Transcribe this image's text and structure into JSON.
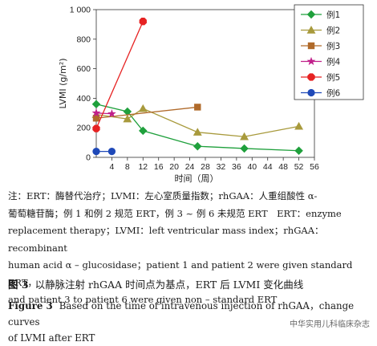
{
  "chart_data": {
    "type": "line",
    "xlabel": "时间（周）",
    "ylabel": "LVMI (g/m²)",
    "xlim": [
      0,
      56
    ],
    "ylim": [
      0,
      1000
    ],
    "x_ticks": [
      4,
      8,
      12,
      16,
      20,
      24,
      28,
      32,
      36,
      40,
      44,
      48,
      52,
      56
    ],
    "y_ticks": [
      0,
      200,
      400,
      600,
      800,
      1000
    ],
    "y_tick_labels": [
      "0",
      "200",
      "400",
      "600",
      "800",
      "1 000"
    ],
    "legend_position": "top-right",
    "series": [
      {
        "name": "例1",
        "color": "#1fa03c",
        "marker": "diamond",
        "x": [
          0,
          8,
          12,
          26,
          38,
          52
        ],
        "y": [
          360,
          310,
          180,
          75,
          60,
          45
        ]
      },
      {
        "name": "例2",
        "color": "#a89a3c",
        "marker": "triangle",
        "x": [
          0,
          8,
          12,
          26,
          38,
          52
        ],
        "y": [
          290,
          260,
          330,
          170,
          140,
          210
        ]
      },
      {
        "name": "例3",
        "color": "#b06a2a",
        "marker": "square",
        "x": [
          0,
          26
        ],
        "y": [
          265,
          340
        ]
      },
      {
        "name": "例4",
        "color": "#c0208a",
        "marker": "star",
        "x": [
          0,
          4
        ],
        "y": [
          300,
          295
        ]
      },
      {
        "name": "例5",
        "color": "#e62222",
        "marker": "octagon",
        "x": [
          0,
          12
        ],
        "y": [
          195,
          920
        ]
      },
      {
        "name": "例6",
        "color": "#1f49b8",
        "marker": "circle",
        "x": [
          0,
          4
        ],
        "y": [
          40,
          40
        ]
      }
    ]
  },
  "caption": {
    "note_zh_1": "注：ERT：酶替代治疗；LVMI：左心室质量指数；rhGAA：人重组酸性 α-",
    "note_zh_2": "葡萄糖苷酶；例 1 和例 2 规范 ERT，例 3 ~ 例 6 未规范 ERT　ERT：enzyme",
    "note_en_1": "replacement therapy；LVMI：left ventricular mass index；rhGAA：recombinant",
    "note_en_2": "human acid α – glucosidase；patient 1 and patient 2 were given standard ERT，",
    "note_en_3": "and patient 3 to patient 6 were given non – standard ERT",
    "fig_zh_label": "图 3",
    "fig_zh_text": "以静脉注射 rhGAA 时间点为基点，ERT 后 LVMI 变化曲线",
    "fig_en_label": "Figure 3",
    "fig_en_text_1": "Based on the time of intravenous injection of rhGAA，change curves",
    "fig_en_text_2": "of LVMI after ERT"
  },
  "watermark": "中华实用儿科临床杂志"
}
